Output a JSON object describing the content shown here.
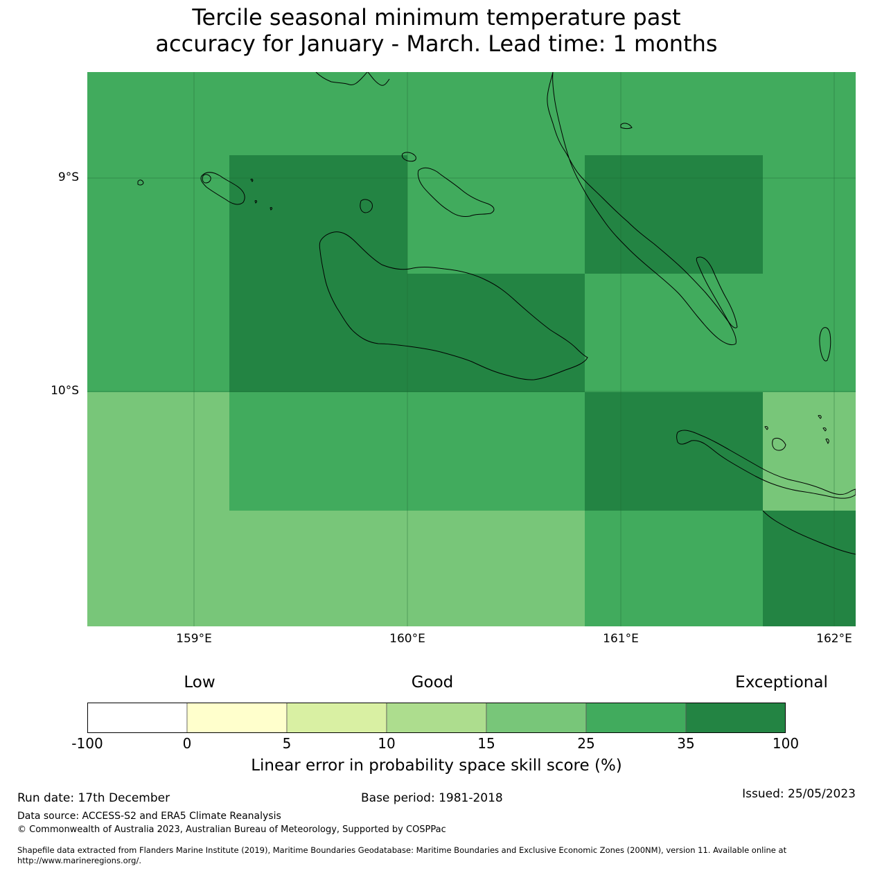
{
  "title_line1": "Tercile seasonal minimum temperature past",
  "title_line2": "accuracy for January - March. Lead time: 1 months",
  "lat_labels": [
    "9°S",
    "10°S"
  ],
  "lon_labels": [
    "159°E",
    "160°E",
    "161°E",
    "162°E"
  ],
  "colorbar": {
    "categories": [
      "Low",
      "Good",
      "Exceptional"
    ],
    "ticks": [
      "-100",
      "0",
      "5",
      "10",
      "15",
      "25",
      "35",
      "100"
    ],
    "colors": [
      "#ffffff",
      "#ffffcc",
      "#d9f0a3",
      "#addd8e",
      "#78c679",
      "#41ab5d",
      "#238443"
    ],
    "label": "Linear error in probability space skill score (%)"
  },
  "map_colors": {
    "light": "#78c679",
    "medium": "#41ab5d",
    "dark": "#238443"
  },
  "footer": {
    "run_date": "Run date: 17th December",
    "base_period": "Base period: 1981-2018",
    "issued": "Issued: 25/05/2023",
    "data_source": "Data source: ACCESS-S2 and ERA5 Climate Reanalysis",
    "copyright": "© Commonwealth of Australia 2023, Australian Bureau of Meteorology, Supported by COSPPac",
    "shapefile_line1": "Shapefile data extracted from Flanders Marine Institute (2019), Maritime Boundaries Geodatabase: Maritime Boundaries and Exclusive Economic Zones (200NM), version 11. Available online at",
    "shapefile_line2": "http://www.marineregions.org/."
  }
}
